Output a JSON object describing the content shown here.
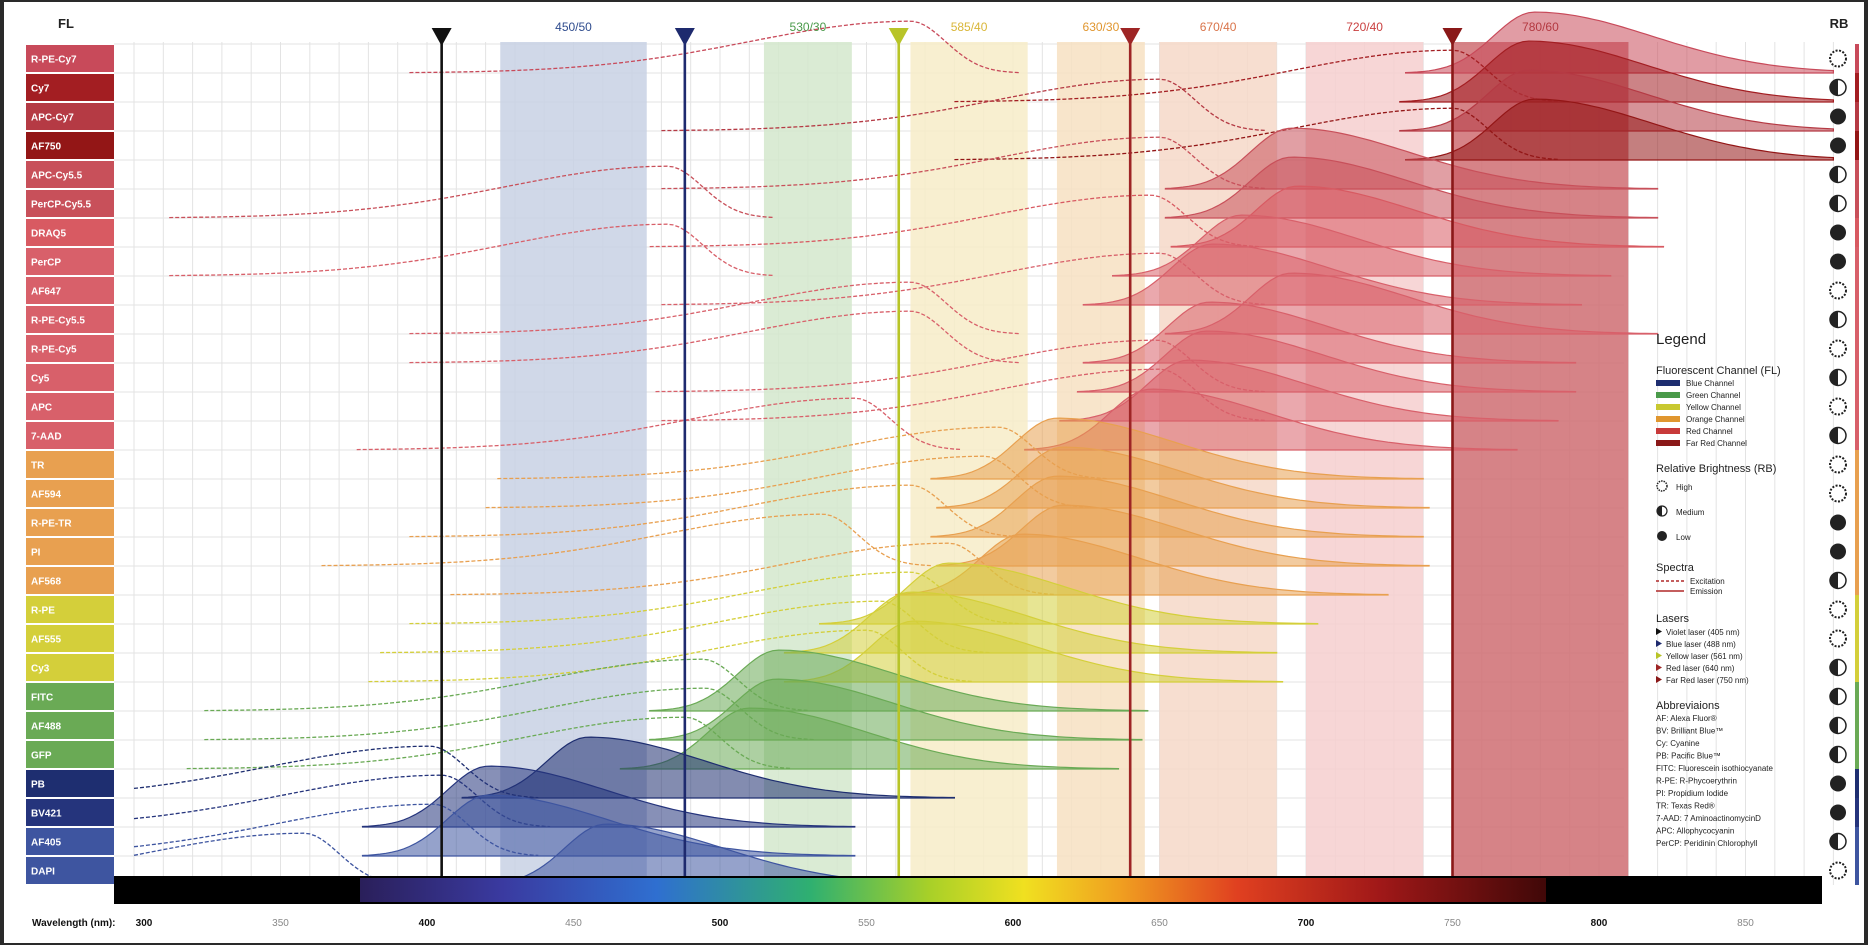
{
  "header": {
    "fl_label": "FL",
    "rb_label": "RB"
  },
  "chart_data": {
    "type": "area",
    "title": "",
    "xlabel": "Wavelength (nm):",
    "xlim": [
      300,
      890
    ],
    "x_ticks": [
      300,
      350,
      400,
      450,
      500,
      550,
      600,
      650,
      700,
      750,
      800,
      850
    ],
    "bold_ticks": [
      300,
      400,
      500,
      600,
      700,
      800
    ],
    "filters": [
      {
        "label": "450/50",
        "center": 450,
        "width": 50,
        "color": "#2f4c8e",
        "fill": "#c8d1e4"
      },
      {
        "label": "530/30",
        "center": 530,
        "width": 30,
        "color": "#4a9a4a",
        "fill": "#d3e8cc"
      },
      {
        "label": "585/40",
        "center": 585,
        "width": 40,
        "color": "#d9b638",
        "fill": "#f7ecc8"
      },
      {
        "label": "630/30",
        "center": 630,
        "width": 30,
        "color": "#e0962f",
        "fill": "#f7e1c2"
      },
      {
        "label": "670/40",
        "center": 670,
        "width": 40,
        "color": "#d9744a",
        "fill": "#f6d8c8"
      },
      {
        "label": "720/40",
        "center": 720,
        "width": 40,
        "color": "#c94040",
        "fill": "#f6cfcf"
      },
      {
        "label": "780/60",
        "center": 780,
        "width": 60,
        "color": "#9a2222",
        "fill": "#cf6d72"
      }
    ],
    "lasers": [
      {
        "wavelength": 405,
        "color": "#111111"
      },
      {
        "wavelength": 488,
        "color": "#1e2a6e"
      },
      {
        "wavelength": 561,
        "color": "#b8c428"
      },
      {
        "wavelength": 640,
        "color": "#9e2525"
      },
      {
        "wavelength": 750,
        "color": "#8a1818"
      }
    ],
    "fluorochromes": [
      {
        "name": "R-PE-Cy7",
        "emission_peak": 778,
        "excitation_peak": 565,
        "brightness": "High",
        "color": "#c84a5a"
      },
      {
        "name": "Cy7",
        "emission_peak": 776,
        "excitation_peak": 750,
        "brightness": "Medium",
        "color": "#a31e22"
      },
      {
        "name": "APC-Cy7",
        "emission_peak": 776,
        "excitation_peak": 650,
        "brightness": "Low",
        "color": "#b53a44"
      },
      {
        "name": "AF750",
        "emission_peak": 778,
        "excitation_peak": 750,
        "brightness": "Low",
        "color": "#931616"
      },
      {
        "name": "APC-Cy5.5",
        "emission_peak": 695,
        "excitation_peak": 650,
        "brightness": "Medium",
        "color": "#c8505a"
      },
      {
        "name": "PerCP-Cy5.5",
        "emission_peak": 695,
        "excitation_peak": 482,
        "brightness": "Medium",
        "color": "#c8505a"
      },
      {
        "name": "DRAQ5",
        "emission_peak": 697,
        "excitation_peak": 647,
        "brightness": "Low",
        "color": "#d85a62"
      },
      {
        "name": "PerCP",
        "emission_peak": 678,
        "excitation_peak": 482,
        "brightness": "Low",
        "color": "#d8606a"
      },
      {
        "name": "AF647",
        "emission_peak": 668,
        "excitation_peak": 650,
        "brightness": "High",
        "color": "#d8606a"
      },
      {
        "name": "R-PE-Cy5.5",
        "emission_peak": 695,
        "excitation_peak": 565,
        "brightness": "Medium",
        "color": "#d8606a"
      },
      {
        "name": "R-PE-Cy5",
        "emission_peak": 667,
        "excitation_peak": 565,
        "brightness": "High",
        "color": "#d8606a"
      },
      {
        "name": "Cy5",
        "emission_peak": 666,
        "excitation_peak": 649,
        "brightness": "Medium",
        "color": "#d8606a"
      },
      {
        "name": "APC",
        "emission_peak": 660,
        "excitation_peak": 650,
        "brightness": "High",
        "color": "#d8606a"
      },
      {
        "name": "7-AAD",
        "emission_peak": 647,
        "excitation_peak": 546,
        "brightness": "Medium",
        "color": "#d8606a"
      },
      {
        "name": "TR",
        "emission_peak": 615,
        "excitation_peak": 595,
        "brightness": "High",
        "color": "#e8a050"
      },
      {
        "name": "AF594",
        "emission_peak": 617,
        "excitation_peak": 590,
        "brightness": "High",
        "color": "#e8a050"
      },
      {
        "name": "R-PE-TR",
        "emission_peak": 615,
        "excitation_peak": 565,
        "brightness": "Low",
        "color": "#e8a050"
      },
      {
        "name": "PI",
        "emission_peak": 617,
        "excitation_peak": 535,
        "brightness": "Low",
        "color": "#e8a050"
      },
      {
        "name": "AF568",
        "emission_peak": 603,
        "excitation_peak": 578,
        "brightness": "Medium",
        "color": "#e8a050"
      },
      {
        "name": "R-PE",
        "emission_peak": 578,
        "excitation_peak": 565,
        "brightness": "High",
        "color": "#d4cf3a"
      },
      {
        "name": "AF555",
        "emission_peak": 565,
        "excitation_peak": 555,
        "brightness": "High",
        "color": "#d4cf3a"
      },
      {
        "name": "Cy3",
        "emission_peak": 566,
        "excitation_peak": 550,
        "brightness": "Medium",
        "color": "#d4cf3a"
      },
      {
        "name": "FITC",
        "emission_peak": 520,
        "excitation_peak": 494,
        "brightness": "Medium",
        "color": "#6aaa55"
      },
      {
        "name": "AF488",
        "emission_peak": 519,
        "excitation_peak": 495,
        "brightness": "Medium",
        "color": "#6aaa55"
      },
      {
        "name": "GFP",
        "emission_peak": 510,
        "excitation_peak": 488,
        "brightness": "Medium",
        "color": "#6aaa55"
      },
      {
        "name": "PB",
        "emission_peak": 455,
        "excitation_peak": 401,
        "brightness": "Low",
        "color": "#1e2e70"
      },
      {
        "name": "BV421",
        "emission_peak": 421,
        "excitation_peak": 405,
        "brightness": "Low",
        "color": "#25347c"
      },
      {
        "name": "AF405",
        "emission_peak": 421,
        "excitation_peak": 402,
        "brightness": "Medium",
        "color": "#3e55a0"
      },
      {
        "name": "DAPI",
        "emission_peak": 461,
        "excitation_peak": 358,
        "brightness": "High",
        "color": "#3e55a0"
      }
    ]
  },
  "legend": {
    "title": "Legend",
    "fl_title": "Fluorescent Channel (FL)",
    "channels": [
      {
        "label": "Blue Channel",
        "color": "#1e2e70"
      },
      {
        "label": "Green Channel",
        "color": "#4a9a4a"
      },
      {
        "label": "Yellow Channel",
        "color": "#c8c830"
      },
      {
        "label": "Orange Channel",
        "color": "#e0962f"
      },
      {
        "label": "Red Channel",
        "color": "#c83a3a"
      },
      {
        "label": "Far Red Channel",
        "color": "#8a1818"
      }
    ],
    "rb_title": "Relative Brightness (RB)",
    "brightness": [
      {
        "label": "High",
        "level": "High"
      },
      {
        "label": "Medium",
        "level": "Medium"
      },
      {
        "label": "Low",
        "level": "Low"
      }
    ],
    "spectra_title": "Spectra",
    "spectra": [
      {
        "label": "Excitation",
        "style": "dashed"
      },
      {
        "label": "Emission",
        "style": "solid"
      }
    ],
    "lasers_title": "Lasers",
    "lasers": [
      {
        "label": "Violet laser (405 nm)",
        "color": "#111111"
      },
      {
        "label": "Blue laser (488 nm)",
        "color": "#1e2a6e"
      },
      {
        "label": "Yellow laser (561 nm)",
        "color": "#b8c428"
      },
      {
        "label": "Red laser (640 nm)",
        "color": "#9e2525"
      },
      {
        "label": "Far Red laser (750 nm)",
        "color": "#8a1818"
      }
    ],
    "abbrev_title": "Abbreviaions",
    "abbreviations": [
      "AF: Alexa Fluor®",
      "BV: Brilliant Blue™",
      "Cy: Cyanine",
      "PB: Pacific Blue™",
      "FITC: Fluorescein isothiocyanate",
      "R-PE: R-Phycoerythrin",
      "PI: Propidium Iodide",
      "TR: Texas Red®",
      "7-AAD: 7 AminoactinomycinD",
      "APC: Allophycocyanin",
      "PerCP: Peridinin Chlorophyll"
    ]
  }
}
